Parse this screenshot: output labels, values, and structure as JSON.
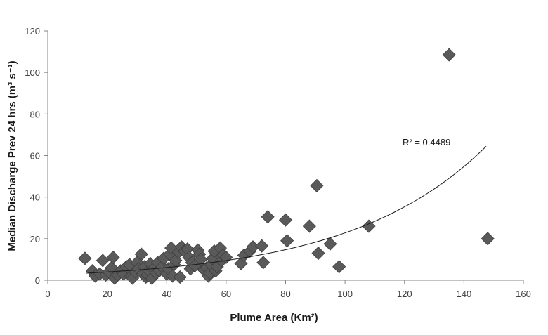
{
  "chart_data": {
    "type": "scatter",
    "title": "",
    "xlabel": "Plume Area (Km²)",
    "ylabel": "Median Discharge Prev 24 hrs (m³ s⁻¹)",
    "xlim": [
      0,
      160
    ],
    "ylim": [
      0,
      120
    ],
    "xticks": [
      0,
      20,
      40,
      60,
      80,
      100,
      120,
      140,
      160
    ],
    "yticks": [
      0,
      20,
      40,
      60,
      80,
      100,
      120
    ],
    "xtick_labels": [
      "0",
      "20",
      "40",
      "60",
      "80",
      "100",
      "120",
      "140",
      "160"
    ],
    "ytick_labels": [
      "0",
      "20",
      "40",
      "60",
      "80",
      "100",
      "120"
    ],
    "grid": false,
    "marker": "diamond",
    "marker_color": "#5a5a5a",
    "trendline": {
      "type": "exponential",
      "a": 2.55,
      "b": 0.0219,
      "x_range": [
        13,
        147.5
      ],
      "color": "#1a1a1a"
    },
    "annotation": "R² = 0.4489",
    "points": [
      {
        "x": 12.5,
        "y": 10.5
      },
      {
        "x": 15,
        "y": 4.5
      },
      {
        "x": 16,
        "y": 2
      },
      {
        "x": 17.5,
        "y": 3
      },
      {
        "x": 18.5,
        "y": 9.5
      },
      {
        "x": 19.5,
        "y": 2.5
      },
      {
        "x": 20.5,
        "y": 4
      },
      {
        "x": 21.5,
        "y": 6
      },
      {
        "x": 22,
        "y": 11
      },
      {
        "x": 22.5,
        "y": 1
      },
      {
        "x": 23.5,
        "y": 2.5
      },
      {
        "x": 24.5,
        "y": 4.5
      },
      {
        "x": 25.5,
        "y": 3
      },
      {
        "x": 26.5,
        "y": 6.5
      },
      {
        "x": 27.5,
        "y": 7.5
      },
      {
        "x": 28,
        "y": 2
      },
      {
        "x": 28.5,
        "y": 1
      },
      {
        "x": 29.5,
        "y": 4
      },
      {
        "x": 30,
        "y": 8.5
      },
      {
        "x": 30.5,
        "y": 5.5
      },
      {
        "x": 31.5,
        "y": 12.5
      },
      {
        "x": 32,
        "y": 3
      },
      {
        "x": 32.5,
        "y": 6.5
      },
      {
        "x": 33,
        "y": 1.5
      },
      {
        "x": 33.5,
        "y": 2.5
      },
      {
        "x": 34,
        "y": 4.5
      },
      {
        "x": 34.5,
        "y": 8
      },
      {
        "x": 35,
        "y": 1
      },
      {
        "x": 35.5,
        "y": 5.5
      },
      {
        "x": 36.5,
        "y": 3.5
      },
      {
        "x": 37,
        "y": 8.5
      },
      {
        "x": 37.5,
        "y": 4.5
      },
      {
        "x": 38.5,
        "y": 6.5
      },
      {
        "x": 39,
        "y": 10.5
      },
      {
        "x": 40,
        "y": 3
      },
      {
        "x": 40.5,
        "y": 5.5
      },
      {
        "x": 41,
        "y": 12.5
      },
      {
        "x": 41.5,
        "y": 15.5
      },
      {
        "x": 42,
        "y": 2
      },
      {
        "x": 42.5,
        "y": 7.5
      },
      {
        "x": 43,
        "y": 9.5
      },
      {
        "x": 44,
        "y": 13.5
      },
      {
        "x": 44.5,
        "y": 1.5
      },
      {
        "x": 45,
        "y": 16
      },
      {
        "x": 46,
        "y": 14
      },
      {
        "x": 47,
        "y": 15
      },
      {
        "x": 47.5,
        "y": 11
      },
      {
        "x": 48,
        "y": 5.5
      },
      {
        "x": 48.5,
        "y": 8.5
      },
      {
        "x": 49.5,
        "y": 7
      },
      {
        "x": 50.5,
        "y": 14.5
      },
      {
        "x": 51,
        "y": 12.5
      },
      {
        "x": 51.5,
        "y": 10
      },
      {
        "x": 52.5,
        "y": 5
      },
      {
        "x": 53.5,
        "y": 6
      },
      {
        "x": 54,
        "y": 2
      },
      {
        "x": 54.5,
        "y": 3.5
      },
      {
        "x": 55,
        "y": 7.5
      },
      {
        "x": 55.5,
        "y": 10.5
      },
      {
        "x": 56,
        "y": 14
      },
      {
        "x": 56.5,
        "y": 4.5
      },
      {
        "x": 57,
        "y": 6.5
      },
      {
        "x": 58,
        "y": 15.5
      },
      {
        "x": 58.5,
        "y": 9.5
      },
      {
        "x": 59,
        "y": 12
      },
      {
        "x": 60,
        "y": 11
      },
      {
        "x": 65,
        "y": 8
      },
      {
        "x": 66,
        "y": 12
      },
      {
        "x": 68,
        "y": 14
      },
      {
        "x": 69,
        "y": 16
      },
      {
        "x": 72,
        "y": 16.5
      },
      {
        "x": 72.5,
        "y": 8.5
      },
      {
        "x": 74,
        "y": 30.5
      },
      {
        "x": 80,
        "y": 29
      },
      {
        "x": 80.5,
        "y": 19
      },
      {
        "x": 88,
        "y": 26
      },
      {
        "x": 90.5,
        "y": 45.5
      },
      {
        "x": 91,
        "y": 13
      },
      {
        "x": 95,
        "y": 17.5
      },
      {
        "x": 98,
        "y": 6.5
      },
      {
        "x": 108,
        "y": 26
      },
      {
        "x": 135,
        "y": 108.5
      },
      {
        "x": 148,
        "y": 20
      }
    ]
  }
}
